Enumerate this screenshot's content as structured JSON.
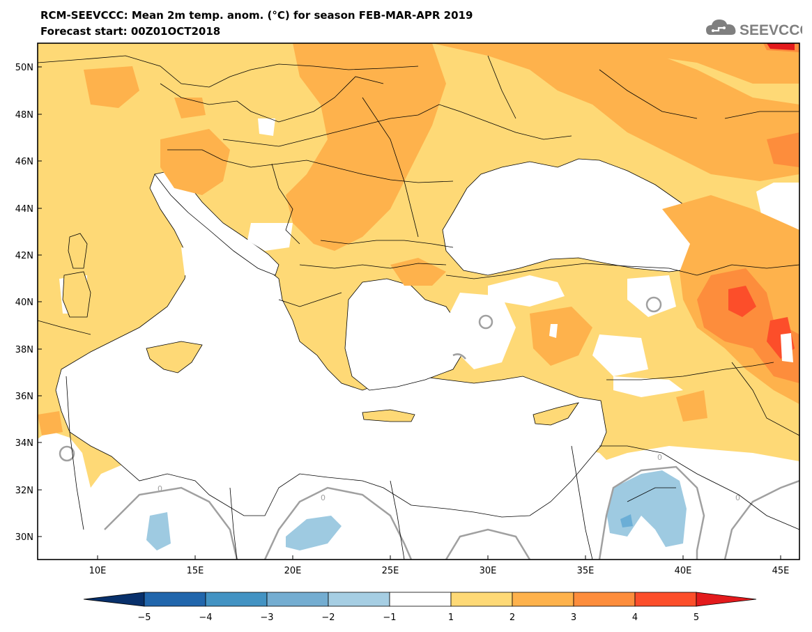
{
  "header": {
    "title": "RCM-SEEVCCC: Mean 2m temp. anom. (°C) for season FEB-MAR-APR 2019",
    "forecast": "Forecast start: 00Z01OCT2018",
    "logo_text": "SEEVCCC",
    "logo_icon": "cloud-icon"
  },
  "map": {
    "lat_ticks": [
      "50N",
      "48N",
      "46N",
      "44N",
      "42N",
      "40N",
      "38N",
      "36N",
      "34N",
      "32N",
      "30N"
    ],
    "lon_ticks": [
      "10E",
      "15E",
      "20E",
      "25E",
      "30E",
      "35E",
      "40E",
      "45E"
    ],
    "contour_labels": [
      "0",
      "0",
      "0",
      "0"
    ]
  },
  "colorbar": {
    "labels": [
      "−5",
      "−4",
      "−3",
      "−2",
      "−1",
      "1",
      "2",
      "3",
      "4",
      "5"
    ],
    "colors": [
      "#08306b",
      "#2166ac",
      "#4393c3",
      "#74add1",
      "#a6cee3",
      "#ffffff",
      "#fed976",
      "#feb24c",
      "#fd8d3c",
      "#fc4e2a",
      "#e31a1c"
    ]
  },
  "palette": {
    "land_base": "#fed976",
    "anom_2_3": "#feb24c",
    "anom_3_4": "#fd8d3c",
    "anom_4_5": "#fc4e2a",
    "anom_5_plus": "#e31a1c",
    "cold_1_2": "#9ecae1",
    "cold_2_3": "#6baed6",
    "contour_zero": "#a0a0a0"
  }
}
